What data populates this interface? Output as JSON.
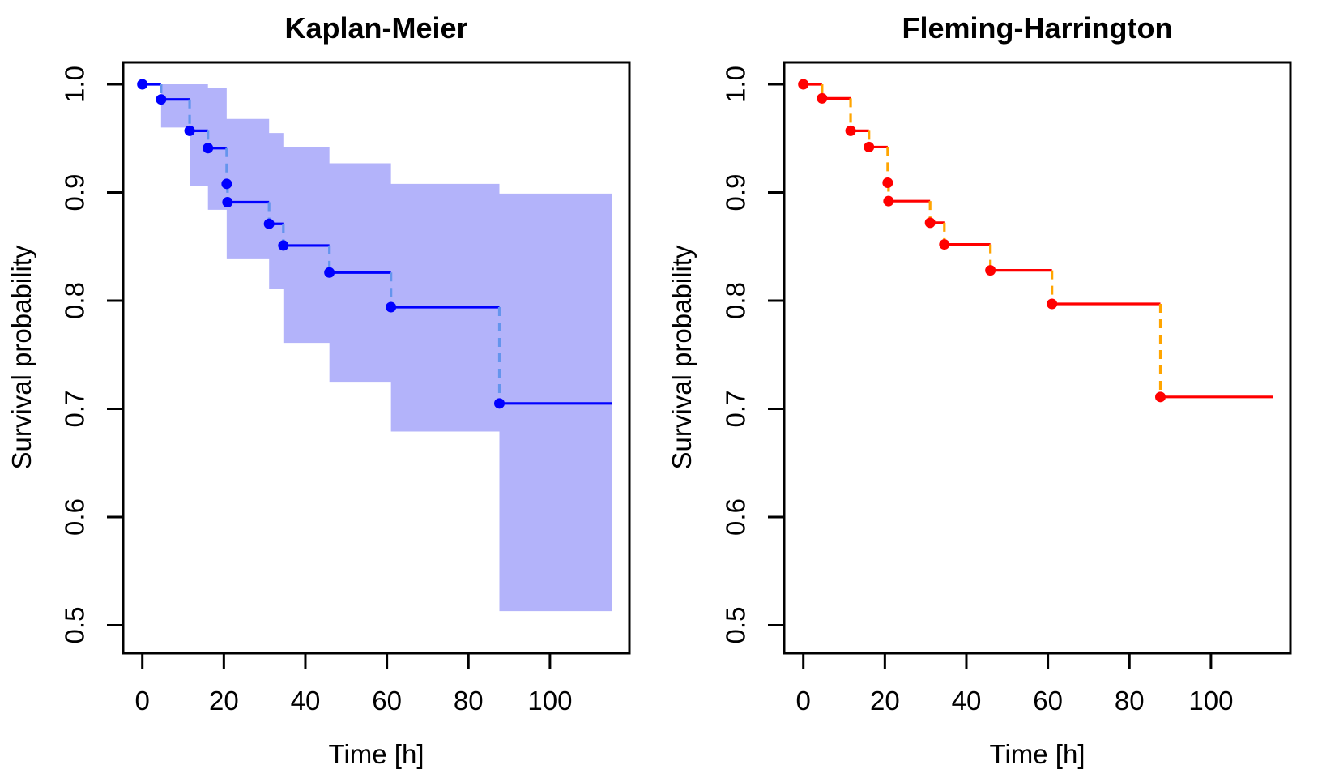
{
  "figure": {
    "background": "#ffffff",
    "text_color": "#000000"
  },
  "chart_data": [
    {
      "id": "km",
      "type": "line",
      "variant": "step-survival-curve",
      "title": "Kaplan-Meier",
      "xlabel": "Time [h]",
      "ylabel": "Survival probability",
      "xlim": [
        0,
        115
      ],
      "ylim": [
        0.5,
        1.0
      ],
      "x_ticks": [
        0,
        20,
        40,
        60,
        80,
        100
      ],
      "y_ticks": [
        1.0,
        0.9,
        0.8,
        0.7,
        0.6,
        0.5
      ],
      "y_tick_labels": [
        "1.0",
        "0.9",
        "0.8",
        "0.7",
        "0.6",
        "0.5"
      ],
      "grid": false,
      "legend": "none",
      "series": [
        {
          "name": "Kaplan-Meier estimate",
          "step_times": [
            0,
            4.6,
            11.6,
            16.1,
            20.7,
            20.9,
            31.1,
            34.6,
            45.9,
            61,
            87.6
          ],
          "survival": [
            1.0,
            0.986,
            0.957,
            0.941,
            0.908,
            0.891,
            0.871,
            0.851,
            0.826,
            0.794,
            0.705
          ],
          "end_time": 115.2,
          "curve_color": "#0000ff",
          "point_color": "#0000ff",
          "drop_color": "#6495ed",
          "drop_style": "dashed",
          "marker": "filled-circle"
        }
      ],
      "confidence_band": {
        "color": "#b3b3fa",
        "times": [
          4.6,
          11.6,
          16.1,
          20.7,
          31.1,
          34.6,
          45.9,
          61,
          87.6,
          115.2
        ],
        "lower": [
          0.96,
          0.906,
          0.884,
          0.839,
          0.811,
          0.761,
          0.725,
          0.679,
          0.513
        ],
        "upper": [
          1.0,
          1.0,
          0.997,
          0.968,
          0.955,
          0.942,
          0.927,
          0.908,
          0.899
        ]
      }
    },
    {
      "id": "fh",
      "type": "line",
      "variant": "step-survival-curve",
      "title": "Fleming-Harrington",
      "xlabel": "Time [h]",
      "ylabel": "Survival probability",
      "xlim": [
        0,
        115
      ],
      "ylim": [
        0.5,
        1.0
      ],
      "x_ticks": [
        0,
        20,
        40,
        60,
        80,
        100
      ],
      "y_ticks": [
        1.0,
        0.9,
        0.8,
        0.7,
        0.6,
        0.5
      ],
      "y_tick_labels": [
        "1.0",
        "0.9",
        "0.8",
        "0.7",
        "0.6",
        "0.5"
      ],
      "grid": false,
      "legend": "none",
      "series": [
        {
          "name": "Fleming-Harrington estimate",
          "step_times": [
            0,
            4.6,
            11.6,
            16.1,
            20.7,
            20.9,
            31.1,
            34.6,
            45.9,
            61,
            87.6
          ],
          "survival": [
            1.0,
            0.987,
            0.957,
            0.942,
            0.909,
            0.892,
            0.872,
            0.852,
            0.828,
            0.797,
            0.711
          ],
          "end_time": 115.2,
          "curve_color": "#ff0000",
          "point_color": "#ff0000",
          "drop_color": "#ffa500",
          "drop_style": "dashed",
          "marker": "filled-circle"
        }
      ],
      "confidence_band": null
    }
  ]
}
